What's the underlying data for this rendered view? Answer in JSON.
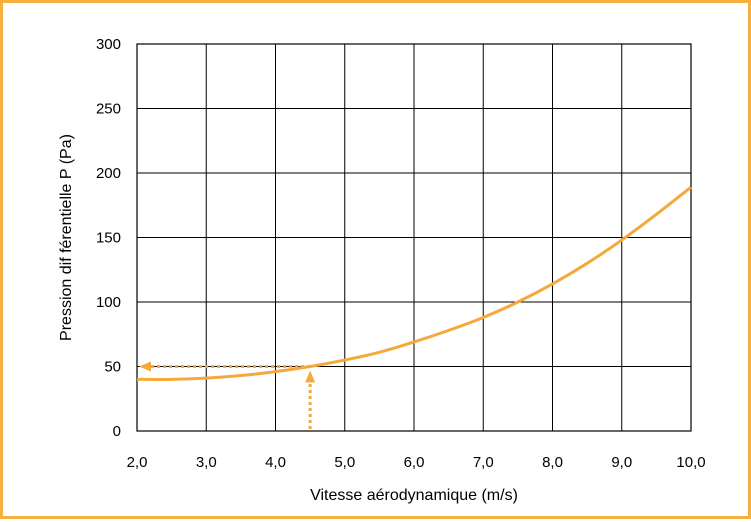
{
  "chart_data": {
    "type": "line",
    "xlabel": "Vitesse aérodynamique (m/s)",
    "ylabel": "Pression dif férentielle P (Pa)",
    "xlim": [
      2.0,
      10.0
    ],
    "ylim": [
      0,
      300
    ],
    "x_ticks": [
      "2,0",
      "3,0",
      "4,0",
      "5,0",
      "6,0",
      "7,0",
      "8,0",
      "9,0",
      "10,0"
    ],
    "y_ticks": [
      "0",
      "50",
      "100",
      "150",
      "200",
      "250",
      "300"
    ],
    "grid": true,
    "series": [
      {
        "x": [
          2.0,
          2.5,
          3.0,
          3.5,
          4.0,
          4.5,
          5.0,
          5.5,
          6.0,
          6.5,
          7.0,
          7.5,
          8.0,
          8.5,
          9.0,
          9.5,
          10.0
        ],
        "y": [
          40,
          40,
          41,
          43,
          46,
          50,
          55,
          61,
          69,
          78,
          88,
          100,
          114,
          130,
          148,
          168,
          189
        ],
        "color": "#f5a93b"
      }
    ],
    "annotation": {
      "x": 4.5,
      "y": 50,
      "color": "#f5a93b",
      "style": "dotted-arrows"
    }
  }
}
